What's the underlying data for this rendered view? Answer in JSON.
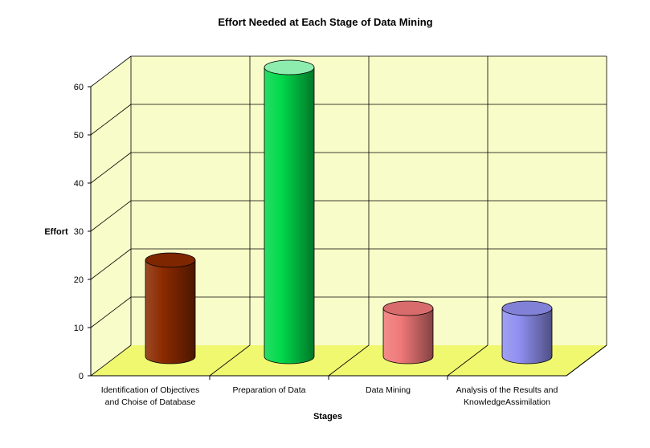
{
  "chart_data": {
    "type": "bar",
    "style": "3d-cylinder",
    "title": "Effort Needed at Each Stage of Data Mining",
    "xlabel": "Stages",
    "ylabel": "Effort",
    "ylim": [
      0,
      60
    ],
    "yticks": [
      "0",
      "10",
      "20",
      "30",
      "40",
      "50",
      "60"
    ],
    "grid": true,
    "categories": [
      [
        "Identification of Objectives",
        "and Choise of Database"
      ],
      [
        "Preparation of Data"
      ],
      [
        "Data Mining"
      ],
      [
        "Analysis of the Results and",
        "KnowledgeAssimilation"
      ]
    ],
    "values": [
      20,
      60,
      10,
      10
    ],
    "colors": [
      "#8b2a00",
      "#00d84a",
      "#f07878",
      "#8f8ff0"
    ],
    "wall_color": "#f8fcc8",
    "floor_color": "#f0f870"
  }
}
